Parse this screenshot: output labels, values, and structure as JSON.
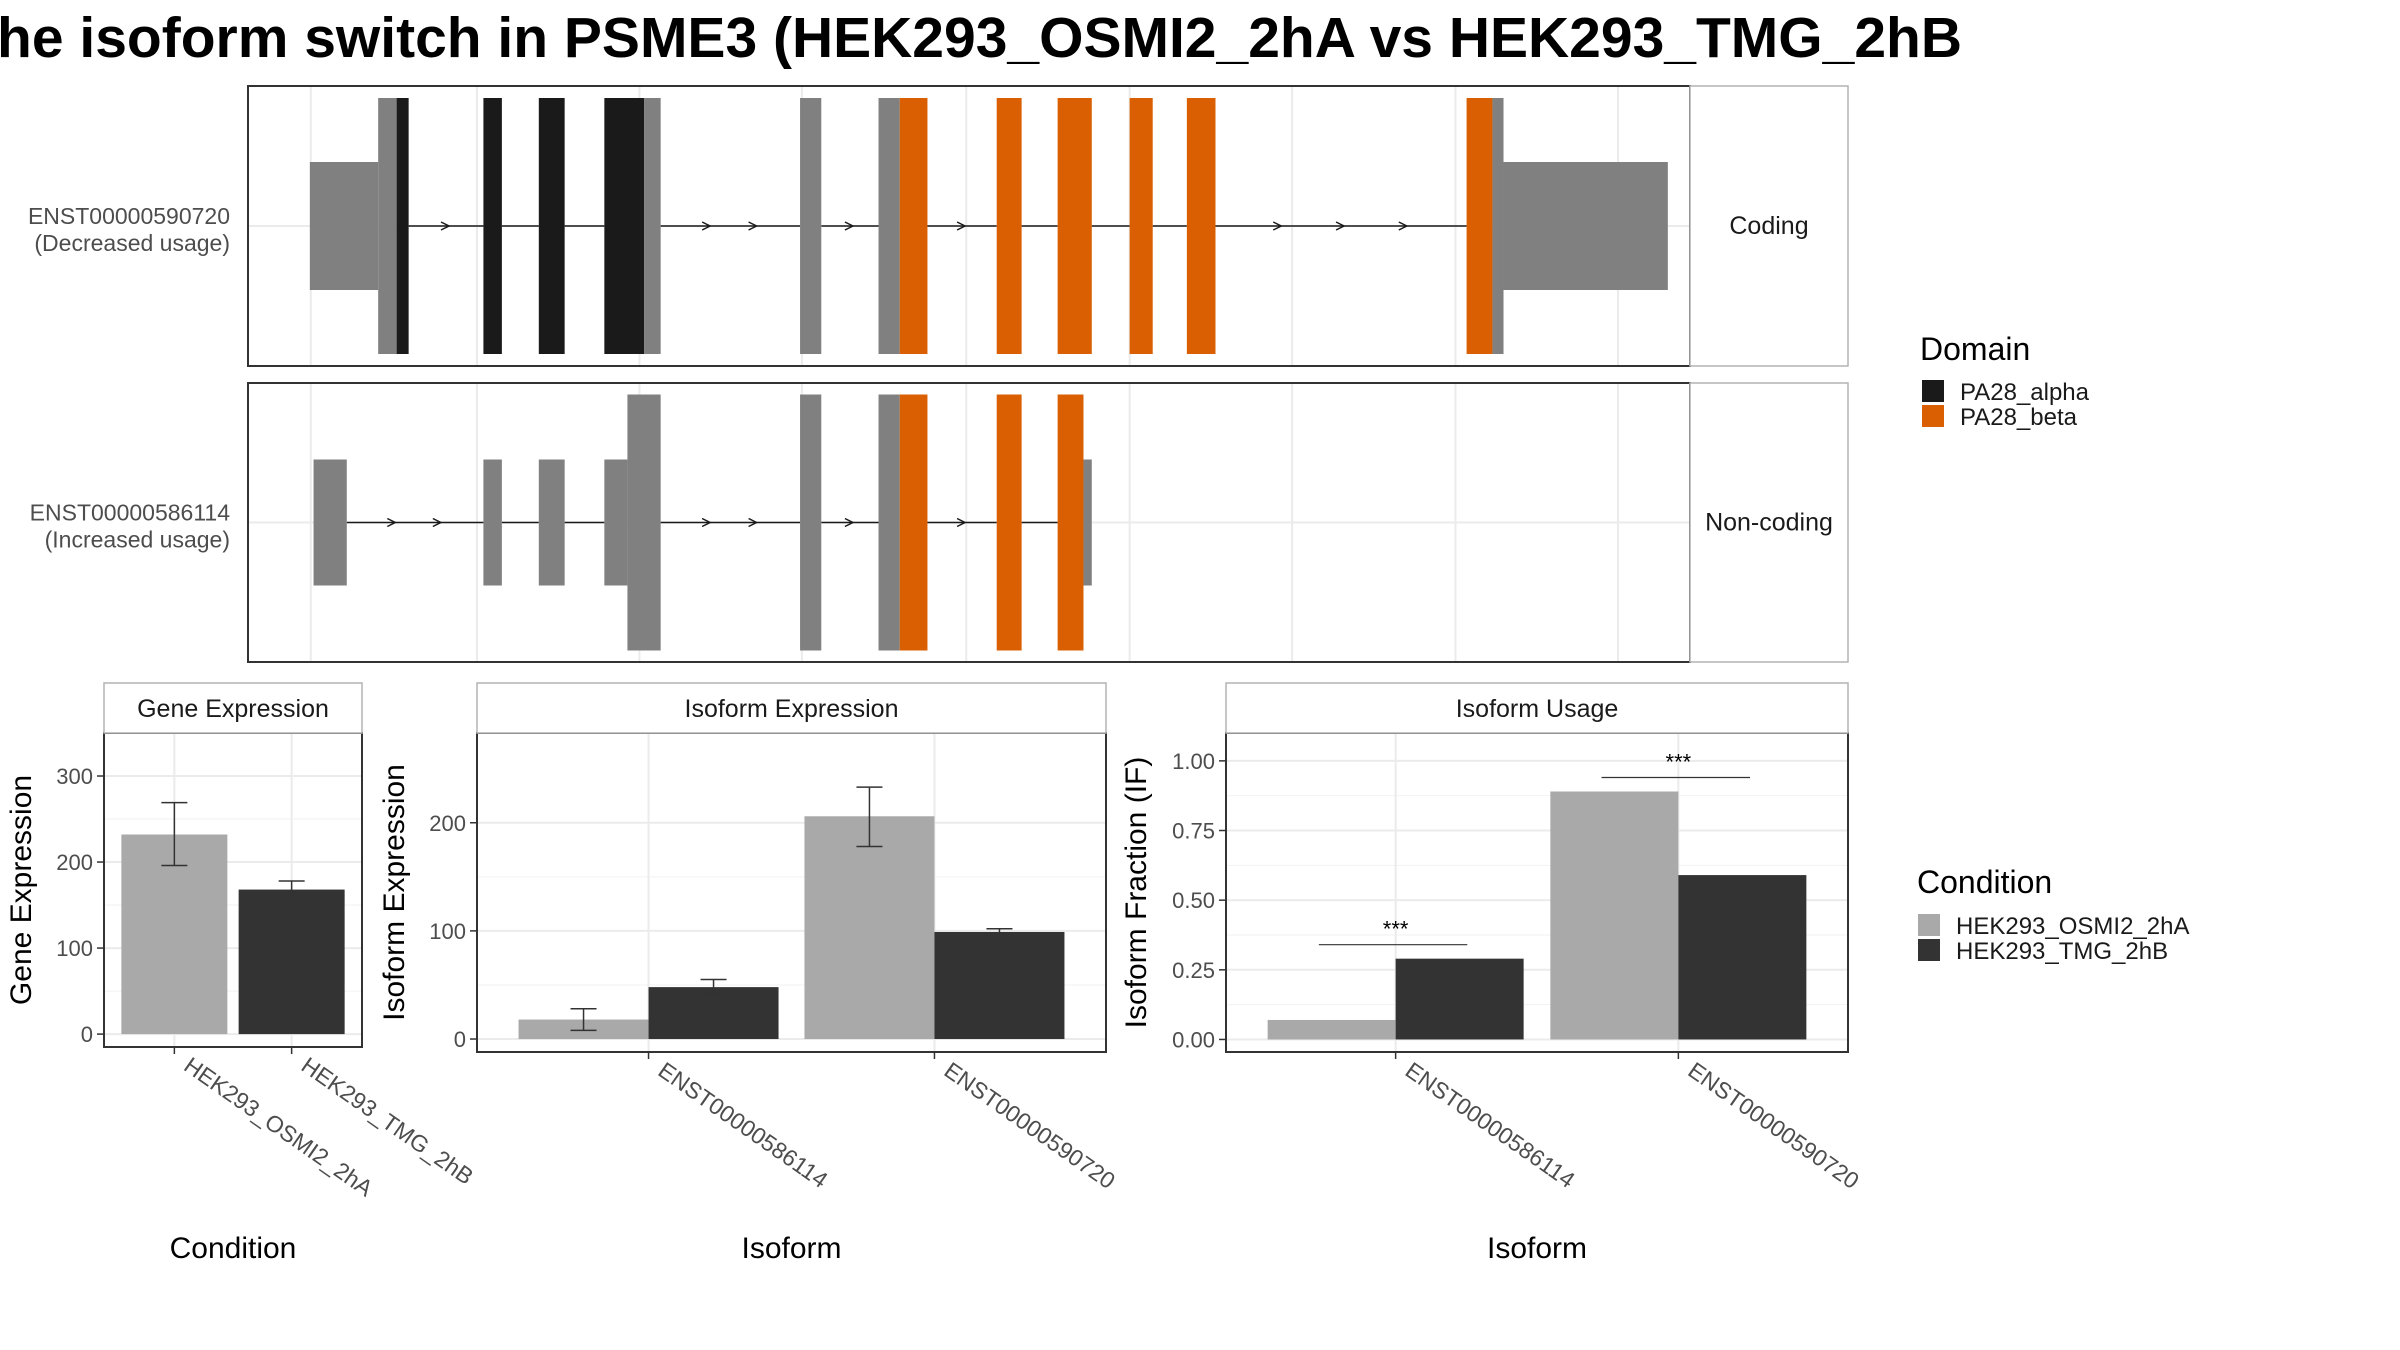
{
  "title": "he isoform switch in PSME3 (HEK293_OSMI2_2hA vs HEK293_TMG_2hB",
  "colors": {
    "PA28_alpha": "#1a1a1a",
    "PA28_beta": "#d95f02",
    "other_exon": "#808080",
    "HEK293_OSMI2_2hA": "#a9a9a9",
    "HEK293_TMG_2hB": "#333333"
  },
  "chart_data": [
    {
      "type": "gene-structure",
      "facets": [
        "Coding",
        "Non-coding"
      ],
      "isoforms": [
        {
          "id": "ENST00000590720",
          "status": "(Decreased usage)",
          "facet": "Coding",
          "exons": [
            {
              "start": 0.5,
              "end": 7.9,
              "type": "utr"
            },
            {
              "start": 7.9,
              "end": 9.9,
              "type": "cds",
              "domain": "none"
            },
            {
              "start": 9.9,
              "end": 11.2,
              "type": "cds",
              "domain": "PA28_alpha"
            },
            {
              "start": 19.3,
              "end": 21.3,
              "type": "cds",
              "domain": "PA28_alpha"
            },
            {
              "start": 25.3,
              "end": 28.1,
              "type": "cds",
              "domain": "PA28_alpha"
            },
            {
              "start": 32.4,
              "end": 36.7,
              "type": "cds",
              "domain": "PA28_alpha"
            },
            {
              "start": 36.7,
              "end": 38.5,
              "type": "cds",
              "domain": "none"
            },
            {
              "start": 53.6,
              "end": 55.9,
              "type": "cds",
              "domain": "none"
            },
            {
              "start": 62.1,
              "end": 64.4,
              "type": "cds",
              "domain": "none"
            },
            {
              "start": 64.4,
              "end": 67.4,
              "type": "cds",
              "domain": "PA28_beta"
            },
            {
              "start": 74.9,
              "end": 77.6,
              "type": "cds",
              "domain": "PA28_beta"
            },
            {
              "start": 81.5,
              "end": 85.2,
              "type": "cds",
              "domain": "PA28_beta"
            },
            {
              "start": 89.3,
              "end": 91.8,
              "type": "cds",
              "domain": "PA28_beta"
            },
            {
              "start": 95.5,
              "end": 98.6,
              "type": "cds",
              "domain": "PA28_beta"
            },
            {
              "start": 125.8,
              "end": 128.6,
              "type": "cds",
              "domain": "PA28_beta"
            },
            {
              "start": 128.6,
              "end": 129.8,
              "type": "cds",
              "domain": "none"
            },
            {
              "start": 129.8,
              "end": 147.6,
              "type": "utr"
            }
          ]
        },
        {
          "id": "ENST00000586114",
          "status": "(Increased usage)",
          "facet": "Non-coding",
          "exons": [
            {
              "start": 0.9,
              "end": 4.5,
              "type": "noncoding"
            },
            {
              "start": 19.3,
              "end": 21.3,
              "type": "noncoding"
            },
            {
              "start": 25.3,
              "end": 28.1,
              "type": "noncoding"
            },
            {
              "start": 32.4,
              "end": 34.9,
              "type": "noncoding"
            },
            {
              "start": 34.9,
              "end": 38.5,
              "type": "noncoding_tall"
            },
            {
              "start": 53.6,
              "end": 55.9,
              "type": "noncoding_tall"
            },
            {
              "start": 62.1,
              "end": 64.4,
              "type": "noncoding_tall"
            },
            {
              "start": 64.4,
              "end": 67.4,
              "type": "noncoding_tall",
              "domain": "PA28_beta"
            },
            {
              "start": 74.9,
              "end": 77.6,
              "type": "noncoding_tall",
              "domain": "PA28_beta"
            },
            {
              "start": 81.5,
              "end": 84.3,
              "type": "noncoding_tall",
              "domain": "PA28_beta"
            },
            {
              "start": 84.3,
              "end": 85.2,
              "type": "noncoding"
            }
          ]
        }
      ],
      "x_range": [
        -6.2,
        150.0
      ],
      "gridlines": [
        0.6,
        18.6,
        36.2,
        53.8,
        71.6,
        89.3,
        106.9,
        124.6,
        142.2
      ]
    },
    {
      "type": "bar",
      "facet_title": "Gene Expression",
      "xlabel": "Condition",
      "ylabel": "Gene Expression",
      "categories": [
        "HEK293_OSMI2_2hA",
        "HEK293_TMG_2hB"
      ],
      "values": [
        232,
        168
      ],
      "errors": [
        [
          196,
          269
        ],
        [
          159,
          178
        ]
      ],
      "yticks": [
        0,
        100,
        200,
        300
      ],
      "ylim": [
        -15,
        350
      ]
    },
    {
      "type": "bar",
      "facet_title": "Isoform Expression",
      "xlabel": "Isoform",
      "ylabel": "Isoform Expression",
      "categories": [
        "ENST00000586114",
        "ENST00000590720"
      ],
      "series": [
        {
          "name": "HEK293_OSMI2_2hA",
          "values": [
            18,
            206
          ],
          "errors": [
            [
              8,
              28
            ],
            [
              178,
              233
            ]
          ]
        },
        {
          "name": "HEK293_TMG_2hB",
          "values": [
            48,
            99
          ],
          "errors": [
            [
              42,
              55
            ],
            [
              96,
              102
            ]
          ]
        }
      ],
      "yticks": [
        0,
        100,
        200
      ],
      "ylim": [
        -12,
        283
      ]
    },
    {
      "type": "bar",
      "facet_title": "Isoform Usage",
      "xlabel": "Isoform",
      "ylabel": "Isoform Fraction (IF)",
      "categories": [
        "ENST00000586114",
        "ENST00000590720"
      ],
      "series": [
        {
          "name": "HEK293_OSMI2_2hA",
          "values": [
            0.07,
            0.89
          ]
        },
        {
          "name": "HEK293_TMG_2hB",
          "values": [
            0.29,
            0.59
          ]
        }
      ],
      "significance": [
        "***",
        "***"
      ],
      "yticks": [
        "0.00",
        "0.25",
        "0.50",
        "0.75",
        "1.00"
      ],
      "ylim": [
        -0.045,
        1.1
      ]
    }
  ],
  "legends": {
    "domain_title": "Domain",
    "domain_items": [
      "PA28_alpha",
      "PA28_beta"
    ],
    "condition_title": "Condition",
    "condition_items": [
      "HEK293_OSMI2_2hA",
      "HEK293_TMG_2hB"
    ]
  }
}
